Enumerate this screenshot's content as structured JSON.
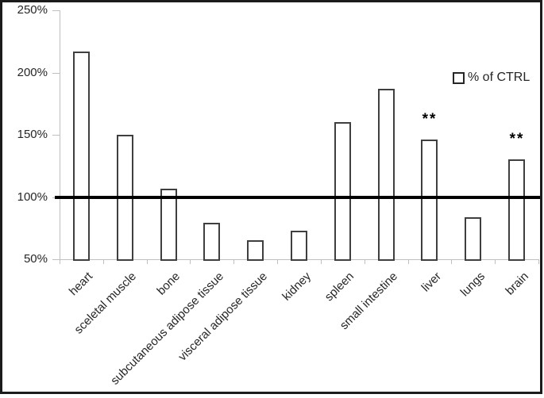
{
  "figure": {
    "background": "#ffffff",
    "frame_border_color": "#1b1b1b"
  },
  "chart_data": {
    "type": "bar",
    "title": "",
    "xlabel": "",
    "ylabel": "",
    "categories": [
      "heart",
      "sceletal muscle",
      "bone",
      "subcutaneous adipose tissue",
      "visceral adipose tissue",
      "kidney",
      "spleen",
      "small intestine",
      "liver",
      "lungs",
      "brain"
    ],
    "values": [
      217,
      150,
      107,
      79,
      65,
      73,
      160,
      187,
      146,
      84,
      130
    ],
    "value_unit": "%",
    "ylim": [
      50,
      250
    ],
    "ytick_step": 50,
    "ytick_labels": [
      "250%",
      "200%",
      "150%",
      "100%",
      "50%"
    ],
    "reference_line": {
      "value": 100,
      "color": "#000000"
    },
    "grid": false,
    "legend_entries": [
      "% of CTRL"
    ],
    "legend_position": "upper-right",
    "legend_swatch": "open-square",
    "annotations": [
      {
        "category": "liver",
        "text": "**"
      },
      {
        "category": "brain",
        "text": "**"
      }
    ],
    "bar_fill": "#ffffff",
    "bar_border_color": "#3f3f3f",
    "axis_color": "#bfbfbf",
    "text_color": "#262626"
  }
}
